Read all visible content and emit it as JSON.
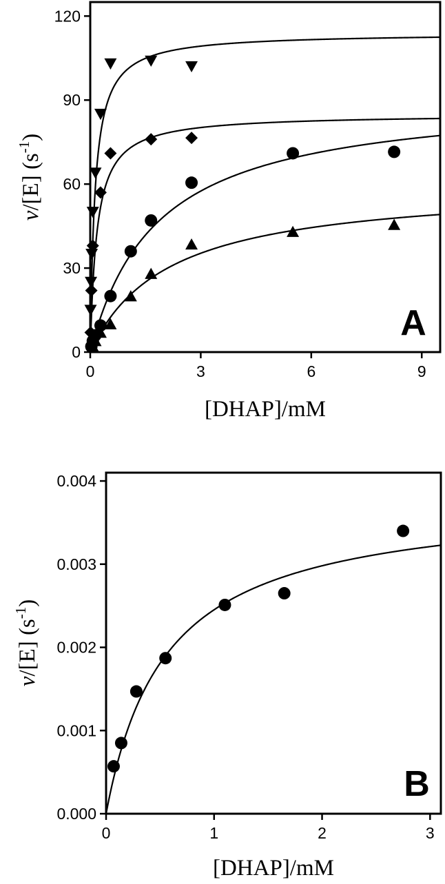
{
  "chart_data": [
    {
      "type": "scatter",
      "panel_label": "A",
      "xlabel": "[DHAP]/mM",
      "ylabel": {
        "italic": "v",
        "main": "/[E] (s",
        "sup": "-1",
        "close": ")"
      },
      "xlim": [
        0,
        9.5
      ],
      "ylim": [
        0,
        125
      ],
      "xticks": [
        0,
        3,
        6,
        9
      ],
      "xtick_labels": [
        "0",
        "3",
        "6",
        "9"
      ],
      "yticks": [
        0,
        30,
        60,
        90,
        120
      ],
      "ytick_labels": [
        "0",
        "30",
        "60",
        "90",
        "120"
      ],
      "grid": false,
      "legend": "none",
      "series": [
        {
          "marker": "triangle-down",
          "points": [
            [
              0.01,
              15
            ],
            [
              0.02,
              25
            ],
            [
              0.04,
              35
            ],
            [
              0.07,
              50
            ],
            [
              0.14,
              64
            ],
            [
              0.28,
              85
            ],
            [
              0.55,
              103
            ],
            [
              1.65,
              104
            ],
            [
              2.75,
              102
            ]
          ],
          "fit": {
            "model": "michaelis-menten",
            "vmax": 114,
            "km": 0.13
          }
        },
        {
          "marker": "diamond",
          "points": [
            [
              0.01,
              7
            ],
            [
              0.03,
              22
            ],
            [
              0.07,
              38
            ],
            [
              0.28,
              57
            ],
            [
              0.55,
              71
            ],
            [
              1.65,
              76
            ],
            [
              2.75,
              76.5
            ]
          ],
          "fit": {
            "model": "michaelis-menten",
            "vmax": 85,
            "km": 0.18
          }
        },
        {
          "marker": "circle",
          "points": [
            [
              0.03,
              2
            ],
            [
              0.07,
              4
            ],
            [
              0.14,
              6
            ],
            [
              0.28,
              9.5
            ],
            [
              0.55,
              20
            ],
            [
              1.1,
              36
            ],
            [
              1.65,
              47
            ],
            [
              2.75,
              60.5
            ],
            [
              5.5,
              71
            ],
            [
              8.25,
              71.5
            ]
          ],
          "fit": {
            "model": "michaelis-menten",
            "vmax": 92,
            "km": 1.8
          }
        },
        {
          "marker": "triangle-up",
          "points": [
            [
              0.07,
              2
            ],
            [
              0.14,
              4
            ],
            [
              0.28,
              7
            ],
            [
              0.55,
              10
            ],
            [
              1.1,
              20
            ],
            [
              1.65,
              28
            ],
            [
              2.75,
              38.5
            ],
            [
              5.5,
              43
            ],
            [
              8.25,
              45.5
            ]
          ],
          "fit": {
            "model": "michaelis-menten",
            "vmax": 60,
            "km": 2.1
          }
        }
      ]
    },
    {
      "type": "scatter",
      "panel_label": "B",
      "xlabel": "[DHAP]/mM",
      "ylabel": {
        "italic": "v",
        "main": "/[E] (s",
        "sup": "-1",
        "close": ")"
      },
      "xlim": [
        0,
        3.1
      ],
      "ylim": [
        0,
        0.0041
      ],
      "xticks": [
        0,
        1,
        2,
        3
      ],
      "xtick_labels": [
        "0",
        "1",
        "2",
        "3"
      ],
      "yticks": [
        0,
        0.001,
        0.002,
        0.003,
        0.004
      ],
      "ytick_labels": [
        "0.000",
        "0.001",
        "0.002",
        "0.003",
        "0.004"
      ],
      "grid": false,
      "legend": "none",
      "series": [
        {
          "marker": "circle",
          "points": [
            [
              0.07,
              0.00057
            ],
            [
              0.14,
              0.00085
            ],
            [
              0.28,
              0.00147
            ],
            [
              0.55,
              0.00187
            ],
            [
              1.1,
              0.00251
            ],
            [
              1.65,
              0.00265
            ],
            [
              2.75,
              0.0034
            ]
          ],
          "fit": {
            "model": "michaelis-menten",
            "vmax": 0.0038,
            "km": 0.55
          }
        }
      ]
    }
  ]
}
